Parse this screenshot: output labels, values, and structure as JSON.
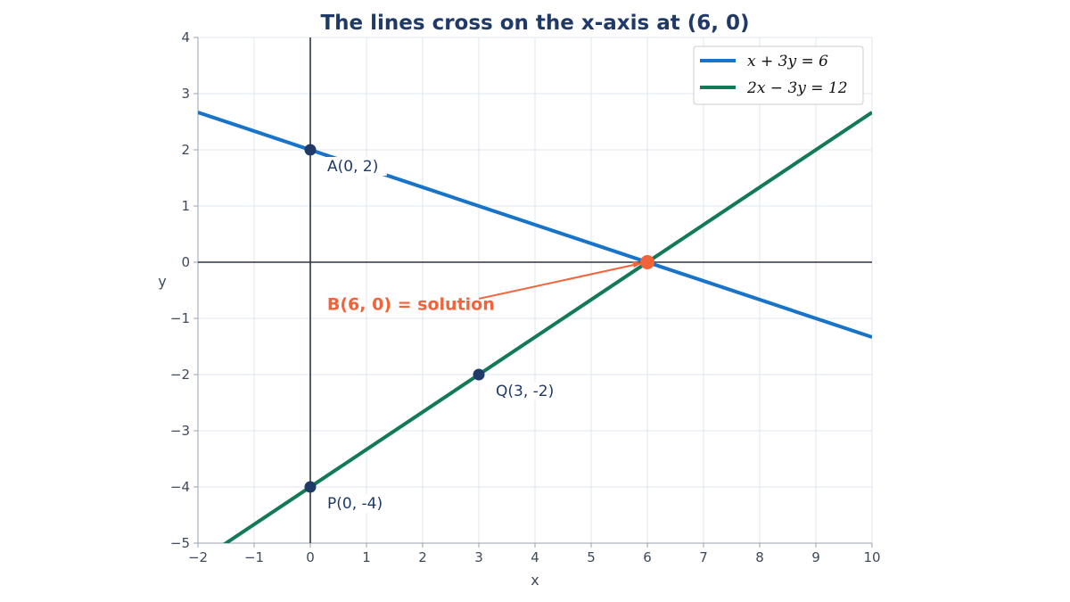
{
  "chart_data": {
    "type": "line",
    "title": "The lines cross on the x-axis at (6, 0)",
    "xlabel": "x",
    "ylabel": "y",
    "xlim": [
      -2,
      10
    ],
    "ylim": [
      -5,
      4
    ],
    "xticks": [
      -2,
      -1,
      0,
      1,
      2,
      3,
      4,
      5,
      6,
      7,
      8,
      9,
      10
    ],
    "yticks": [
      -5,
      -4,
      -3,
      -2,
      -1,
      0,
      1,
      2,
      3,
      4
    ],
    "xtick_labels": [
      "−2",
      "−1",
      "0",
      "1",
      "2",
      "3",
      "4",
      "5",
      "6",
      "7",
      "8",
      "9",
      "10"
    ],
    "ytick_labels": [
      "−5",
      "−4",
      "−3",
      "−2",
      "−1",
      "0",
      "1",
      "2",
      "3",
      "4"
    ],
    "grid": true,
    "legend_position": "top-right",
    "series": [
      {
        "name": "x + 3y = 6",
        "color": "#1874c8",
        "x": [
          -2,
          10
        ],
        "y": [
          2.6667,
          -1.3333
        ]
      },
      {
        "name": "2x − 3y = 12",
        "color": "#127a55",
        "x": [
          -2,
          10
        ],
        "y": [
          -5.3333,
          2.6667
        ]
      }
    ],
    "points": [
      {
        "label": "A(0, 2)",
        "x": 0,
        "y": 2,
        "color": "#1f3a68"
      },
      {
        "label": "Q(3, -2)",
        "x": 3,
        "y": -2,
        "color": "#1f3a68"
      },
      {
        "label": "P(0, -4)",
        "x": 0,
        "y": -4,
        "color": "#1f3a68"
      },
      {
        "label": "",
        "x": 6,
        "y": 0,
        "color": "#f4623a"
      }
    ],
    "annotation": {
      "text": "B(6, 0) = solution",
      "target_x": 6,
      "target_y": 0,
      "text_x": 0.3,
      "text_y": -0.85,
      "color": "#f4623a"
    }
  }
}
